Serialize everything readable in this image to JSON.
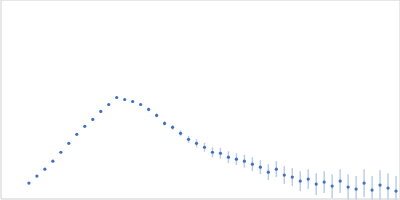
{
  "chart_data": {
    "type": "scatter",
    "color": "#3f6fbf",
    "marker": "circle",
    "grid": true,
    "tick_labels": false,
    "xlim": [
      0,
      0.4
    ],
    "xticks": [
      0.115
    ],
    "ylim": [
      0,
      2
    ],
    "yticks": [
      1
    ],
    "x": [
      0.028,
      0.036,
      0.044,
      0.052,
      0.06,
      0.068,
      0.076,
      0.084,
      0.092,
      0.1,
      0.108,
      0.116,
      0.124,
      0.132,
      0.14,
      0.148,
      0.156,
      0.164,
      0.172,
      0.18,
      0.188,
      0.196,
      0.204,
      0.212,
      0.22,
      0.228,
      0.236,
      0.244,
      0.252,
      0.26,
      0.268,
      0.276,
      0.284,
      0.292,
      0.3,
      0.308,
      0.316,
      0.324,
      0.332,
      0.34,
      0.348,
      0.356,
      0.364,
      0.372,
      0.38,
      0.388,
      0.396
    ],
    "values": [
      0.16,
      0.23,
      0.3,
      0.38,
      0.47,
      0.56,
      0.65,
      0.73,
      0.8,
      0.88,
      0.95,
      1.02,
      1.0,
      0.98,
      0.95,
      0.9,
      0.84,
      0.76,
      0.72,
      0.66,
      0.6,
      0.56,
      0.52,
      0.47,
      0.46,
      0.42,
      0.4,
      0.38,
      0.35,
      0.32,
      0.27,
      0.3,
      0.24,
      0.22,
      0.18,
      0.2,
      0.15,
      0.17,
      0.13,
      0.18,
      0.12,
      0.1,
      0.16,
      0.09,
      0.14,
      0.11,
      0.08
    ],
    "errors": [
      0.005,
      0.005,
      0.005,
      0.005,
      0.006,
      0.006,
      0.006,
      0.007,
      0.007,
      0.008,
      0.008,
      0.01,
      0.01,
      0.012,
      0.014,
      0.016,
      0.02,
      0.022,
      0.025,
      0.03,
      0.035,
      0.04,
      0.045,
      0.05,
      0.055,
      0.06,
      0.06,
      0.065,
      0.07,
      0.07,
      0.08,
      0.08,
      0.09,
      0.09,
      0.1,
      0.1,
      0.11,
      0.11,
      0.12,
      0.12,
      0.13,
      0.13,
      0.14,
      0.14,
      0.15,
      0.15,
      0.15
    ]
  }
}
